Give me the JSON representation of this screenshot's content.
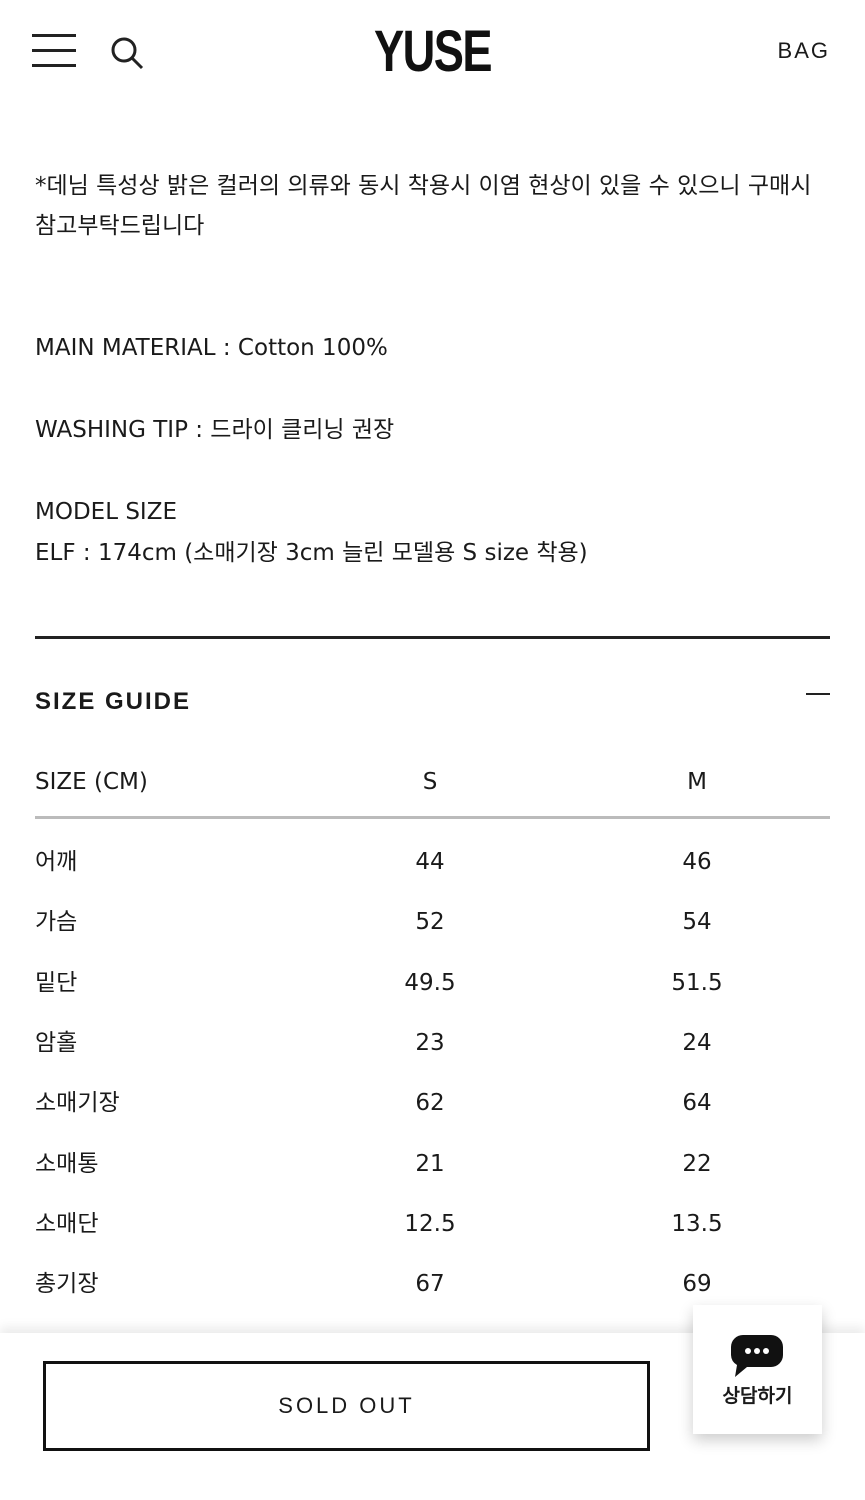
{
  "header": {
    "logo": "YUSE",
    "bag_label": "BAG"
  },
  "description": {
    "denim_note": "*데님 특성상 밝은 컬러의 의류와 동시 착용시 이염 현상이 있을 수 있으니 구매시 참고부탁드립니다",
    "main_material": "MAIN MATERIAL : Cotton 100%",
    "washing_tip": "WASHING TIP : 드라이 클리닝 권장",
    "model_size_title": "MODEL SIZE",
    "model_size": "ELF : 174cm (소매기장 3cm 늘린 모델용 S size 착용)"
  },
  "size_guide": {
    "title": "SIZE GUIDE",
    "headers": [
      "SIZE (CM)",
      "S",
      "M"
    ],
    "rows": [
      [
        "어깨",
        "44",
        "46"
      ],
      [
        "가슴",
        "52",
        "54"
      ],
      [
        "밑단",
        "49.5",
        "51.5"
      ],
      [
        "암홀",
        "23",
        "24"
      ],
      [
        "소매기장",
        "62",
        "64"
      ],
      [
        "소매통",
        "21",
        "22"
      ],
      [
        "소매단",
        "12.5",
        "13.5"
      ],
      [
        "총기장",
        "67",
        "69"
      ]
    ]
  },
  "bottom": {
    "sold_out_label": "SOLD OUT",
    "chat_label": "상담하기"
  }
}
